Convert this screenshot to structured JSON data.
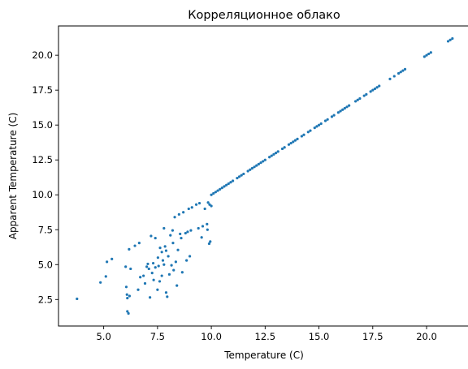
{
  "chart_data": {
    "type": "scatter",
    "title": "Корреляционное облако",
    "xlabel": "Temperature (C)",
    "ylabel": "Apparent Temperature (C)",
    "xlim": [
      2.9,
      22.0
    ],
    "ylim": [
      0.6,
      22.1
    ],
    "xticks": [
      5.0,
      7.5,
      10.0,
      12.5,
      15.0,
      17.5,
      20.0
    ],
    "xtick_labels": [
      "5.0",
      "7.5",
      "10.0",
      "12.5",
      "15.0",
      "17.5",
      "20.0"
    ],
    "yticks": [
      2.5,
      5.0,
      7.5,
      10.0,
      12.5,
      15.0,
      17.5,
      20.0
    ],
    "ytick_labels": [
      "2.5",
      "5.0",
      "7.5",
      "10.0",
      "12.5",
      "15.0",
      "17.5",
      "20.0"
    ],
    "grid": false,
    "marker_color": "#1f77b4",
    "series": [
      {
        "points": [
          [
            3.76,
            2.55
          ],
          [
            4.85,
            3.72
          ],
          [
            5.1,
            4.15
          ],
          [
            5.15,
            5.2
          ],
          [
            5.38,
            5.4
          ],
          [
            6.02,
            4.85
          ],
          [
            6.05,
            3.4
          ],
          [
            6.08,
            2.85
          ],
          [
            6.1,
            2.6
          ],
          [
            6.1,
            1.65
          ],
          [
            6.15,
            1.5
          ],
          [
            6.18,
            6.1
          ],
          [
            6.2,
            2.75
          ],
          [
            6.25,
            4.7
          ],
          [
            6.45,
            6.35
          ],
          [
            6.6,
            3.2
          ],
          [
            6.65,
            6.55
          ],
          [
            6.7,
            4.1
          ],
          [
            6.85,
            4.2
          ],
          [
            6.92,
            3.65
          ],
          [
            7.0,
            4.85
          ],
          [
            7.05,
            5.05
          ],
          [
            7.1,
            4.7
          ],
          [
            7.15,
            2.65
          ],
          [
            7.2,
            7.05
          ],
          [
            7.25,
            4.4
          ],
          [
            7.3,
            5.1
          ],
          [
            7.32,
            3.9
          ],
          [
            7.4,
            4.8
          ],
          [
            7.4,
            6.9
          ],
          [
            7.5,
            3.2
          ],
          [
            7.52,
            5.5
          ],
          [
            7.55,
            4.9
          ],
          [
            7.6,
            3.8
          ],
          [
            7.62,
            6.2
          ],
          [
            7.7,
            5.9
          ],
          [
            7.7,
            4.2
          ],
          [
            7.75,
            5.3
          ],
          [
            7.8,
            7.6
          ],
          [
            7.8,
            5.0
          ],
          [
            7.85,
            6.3
          ],
          [
            7.9,
            3.0
          ],
          [
            7.9,
            6.0
          ],
          [
            7.95,
            2.7
          ],
          [
            8.0,
            5.6
          ],
          [
            8.05,
            4.3
          ],
          [
            8.1,
            7.1
          ],
          [
            8.15,
            4.95
          ],
          [
            8.2,
            7.45
          ],
          [
            8.22,
            6.55
          ],
          [
            8.25,
            4.6
          ],
          [
            8.3,
            8.4
          ],
          [
            8.35,
            5.2
          ],
          [
            8.4,
            3.5
          ],
          [
            8.45,
            6.05
          ],
          [
            8.5,
            8.6
          ],
          [
            8.55,
            7.2
          ],
          [
            8.6,
            6.9
          ],
          [
            8.65,
            4.45
          ],
          [
            8.7,
            8.75
          ],
          [
            8.8,
            7.25
          ],
          [
            8.85,
            5.3
          ],
          [
            8.9,
            7.35
          ],
          [
            8.95,
            9.0
          ],
          [
            9.0,
            5.6
          ],
          [
            9.05,
            7.45
          ],
          [
            9.1,
            9.1
          ],
          [
            9.3,
            9.3
          ],
          [
            9.4,
            7.6
          ],
          [
            9.45,
            9.4
          ],
          [
            9.55,
            6.95
          ],
          [
            9.6,
            7.75
          ],
          [
            9.7,
            9.0
          ],
          [
            9.8,
            7.9
          ],
          [
            9.82,
            7.5
          ],
          [
            9.85,
            9.45
          ],
          [
            9.9,
            6.5
          ],
          [
            9.92,
            9.3
          ],
          [
            9.95,
            6.65
          ],
          [
            10.0,
            9.2
          ],
          [
            10.0,
            10.0
          ],
          [
            10.1,
            10.1
          ],
          [
            10.2,
            10.2
          ],
          [
            10.3,
            10.3
          ],
          [
            10.4,
            10.4
          ],
          [
            10.5,
            10.5
          ],
          [
            10.6,
            10.6
          ],
          [
            10.7,
            10.7
          ],
          [
            10.8,
            10.8
          ],
          [
            10.9,
            10.9
          ],
          [
            11.0,
            11.0
          ],
          [
            11.2,
            11.2
          ],
          [
            11.3,
            11.3
          ],
          [
            11.4,
            11.4
          ],
          [
            11.5,
            11.5
          ],
          [
            11.7,
            11.7
          ],
          [
            11.8,
            11.8
          ],
          [
            11.9,
            11.9
          ],
          [
            12.0,
            12.0
          ],
          [
            12.1,
            12.1
          ],
          [
            12.2,
            12.2
          ],
          [
            12.3,
            12.3
          ],
          [
            12.4,
            12.4
          ],
          [
            12.5,
            12.5
          ],
          [
            12.7,
            12.7
          ],
          [
            12.8,
            12.8
          ],
          [
            12.9,
            12.9
          ],
          [
            13.0,
            13.0
          ],
          [
            13.1,
            13.1
          ],
          [
            13.3,
            13.3
          ],
          [
            13.4,
            13.4
          ],
          [
            13.6,
            13.6
          ],
          [
            13.7,
            13.7
          ],
          [
            13.8,
            13.8
          ],
          [
            13.9,
            13.9
          ],
          [
            14.0,
            14.0
          ],
          [
            14.2,
            14.2
          ],
          [
            14.3,
            14.3
          ],
          [
            14.5,
            14.5
          ],
          [
            14.6,
            14.6
          ],
          [
            14.8,
            14.8
          ],
          [
            14.9,
            14.9
          ],
          [
            15.0,
            15.0
          ],
          [
            15.1,
            15.1
          ],
          [
            15.3,
            15.3
          ],
          [
            15.4,
            15.4
          ],
          [
            15.6,
            15.6
          ],
          [
            15.7,
            15.7
          ],
          [
            15.9,
            15.9
          ],
          [
            16.0,
            16.0
          ],
          [
            16.1,
            16.1
          ],
          [
            16.2,
            16.2
          ],
          [
            16.3,
            16.3
          ],
          [
            16.4,
            16.4
          ],
          [
            16.7,
            16.7
          ],
          [
            16.8,
            16.8
          ],
          [
            16.9,
            16.9
          ],
          [
            17.1,
            17.1
          ],
          [
            17.2,
            17.2
          ],
          [
            17.4,
            17.4
          ],
          [
            17.5,
            17.5
          ],
          [
            17.6,
            17.6
          ],
          [
            17.7,
            17.7
          ],
          [
            17.8,
            17.8
          ],
          [
            18.3,
            18.3
          ],
          [
            18.5,
            18.5
          ],
          [
            18.7,
            18.7
          ],
          [
            18.8,
            18.8
          ],
          [
            18.9,
            18.9
          ],
          [
            19.0,
            19.0
          ],
          [
            19.9,
            19.9
          ],
          [
            20.0,
            20.0
          ],
          [
            20.1,
            20.1
          ],
          [
            20.2,
            20.2
          ],
          [
            21.0,
            21.0
          ],
          [
            21.1,
            21.1
          ],
          [
            21.2,
            21.2
          ]
        ]
      }
    ]
  }
}
